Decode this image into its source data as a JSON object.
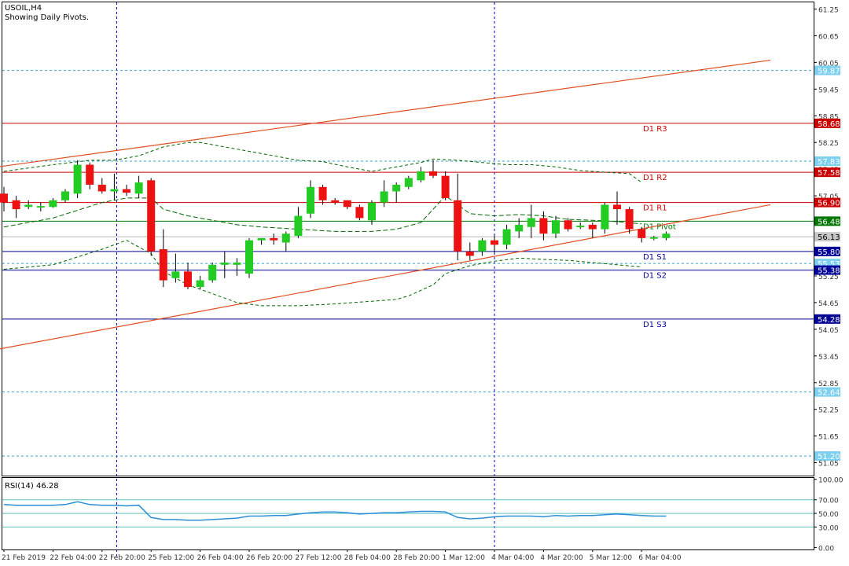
{
  "header": {
    "symbol": "USOIL,H4",
    "subtitle": "Showing Daily Pivots."
  },
  "rsi_label": "RSI(14) 46.28",
  "colors": {
    "up_candle": "#22cc22",
    "down_candle": "#ee1111",
    "pivot": "#007700",
    "resistance": "#cc0000",
    "support": "#000099",
    "trendline": "#e05020",
    "bands": "#006600",
    "dotted_levels": "#3aa0c8",
    "rsi_line": "#2a8fd8",
    "rsi_levels": "#5fc0c0",
    "period_separator": "#0000cc"
  },
  "chart_data": [
    {
      "type": "candlestick",
      "title": "USOIL,H4",
      "y_ticks": [
        "61.25",
        "60.65",
        "60.05",
        "59.45",
        "58.85",
        "58.25",
        "57.65",
        "57.05",
        "56.45",
        "55.85",
        "55.25",
        "54.65",
        "54.05",
        "53.45",
        "52.85",
        "52.25",
        "51.65",
        "51.05"
      ],
      "ylim": [
        50.76,
        61.4
      ],
      "x_ticks": [
        {
          "index": 0,
          "label": "21 Feb 2019"
        },
        {
          "index": 4,
          "label": "22 Feb 04:00"
        },
        {
          "index": 8,
          "label": "22 Feb 20:00"
        },
        {
          "index": 12,
          "label": "25 Feb 12:00"
        },
        {
          "index": 16,
          "label": "26 Feb 04:00"
        },
        {
          "index": 20,
          "label": "26 Feb 20:00"
        },
        {
          "index": 24,
          "label": "27 Feb 12:00"
        },
        {
          "index": 28,
          "label": "28 Feb 04:00"
        },
        {
          "index": 32,
          "label": "28 Feb 20:00"
        },
        {
          "index": 36,
          "label": "1 Mar 12:00"
        },
        {
          "index": 40,
          "label": "4 Mar 04:00"
        },
        {
          "index": 44,
          "label": "4 Mar 20:00"
        },
        {
          "index": 48,
          "label": "5 Mar 12:00"
        },
        {
          "index": 52,
          "label": "6 Mar 04:00"
        }
      ],
      "candles": [
        {
          "o": 57.1,
          "h": 57.25,
          "c": 56.9,
          "l": 56.7
        },
        {
          "o": 56.95,
          "h": 57.05,
          "c": 56.75,
          "l": 56.55
        },
        {
          "o": 56.8,
          "h": 56.95,
          "c": 56.85,
          "l": 56.75
        },
        {
          "o": 56.8,
          "h": 56.9,
          "c": 56.82,
          "l": 56.7
        },
        {
          "o": 56.8,
          "h": 57.0,
          "c": 56.95,
          "l": 56.78
        },
        {
          "o": 56.95,
          "h": 57.2,
          "c": 57.15,
          "l": 56.9
        },
        {
          "o": 57.1,
          "h": 57.85,
          "c": 57.75,
          "l": 57.0
        },
        {
          "o": 57.75,
          "h": 57.8,
          "c": 57.3,
          "l": 57.2
        },
        {
          "o": 57.3,
          "h": 57.45,
          "c": 57.15,
          "l": 57.1
        },
        {
          "o": 57.15,
          "h": 57.55,
          "c": 57.2,
          "l": 56.95
        },
        {
          "o": 57.2,
          "h": 57.3,
          "c": 57.12,
          "l": 57.05
        },
        {
          "o": 57.1,
          "h": 57.5,
          "c": 57.35,
          "l": 57.0
        },
        {
          "o": 57.4,
          "h": 57.45,
          "c": 55.8,
          "l": 55.7
        },
        {
          "o": 55.85,
          "h": 56.3,
          "c": 55.15,
          "l": 55.0
        },
        {
          "o": 55.2,
          "h": 55.75,
          "c": 55.35,
          "l": 55.1
        },
        {
          "o": 55.35,
          "h": 55.55,
          "c": 55.0,
          "l": 54.95
        },
        {
          "o": 55.0,
          "h": 55.25,
          "c": 55.15,
          "l": 54.95
        },
        {
          "o": 55.15,
          "h": 55.55,
          "c": 55.5,
          "l": 55.1
        },
        {
          "o": 55.5,
          "h": 55.8,
          "c": 55.55,
          "l": 55.2
        },
        {
          "o": 55.5,
          "h": 55.65,
          "c": 55.55,
          "l": 55.25
        },
        {
          "o": 55.3,
          "h": 56.1,
          "c": 56.05,
          "l": 55.2
        },
        {
          "o": 56.05,
          "h": 56.1,
          "c": 56.1,
          "l": 55.95
        },
        {
          "o": 56.1,
          "h": 56.2,
          "c": 56.05,
          "l": 55.95
        },
        {
          "o": 56.0,
          "h": 56.25,
          "c": 56.2,
          "l": 55.8
        },
        {
          "o": 56.15,
          "h": 56.8,
          "c": 56.6,
          "l": 56.1
        },
        {
          "o": 56.65,
          "h": 57.4,
          "c": 57.25,
          "l": 56.55
        },
        {
          "o": 57.25,
          "h": 57.3,
          "c": 56.95,
          "l": 56.85
        },
        {
          "o": 56.95,
          "h": 57.0,
          "c": 56.9,
          "l": 56.85
        },
        {
          "o": 56.95,
          "h": 56.95,
          "c": 56.8,
          "l": 56.75
        },
        {
          "o": 56.8,
          "h": 56.85,
          "c": 56.55,
          "l": 56.5
        },
        {
          "o": 56.5,
          "h": 56.95,
          "c": 56.9,
          "l": 56.4
        },
        {
          "o": 56.9,
          "h": 57.4,
          "c": 57.15,
          "l": 56.8
        },
        {
          "o": 57.15,
          "h": 57.35,
          "c": 57.3,
          "l": 56.9
        },
        {
          "o": 57.25,
          "h": 57.5,
          "c": 57.45,
          "l": 57.2
        },
        {
          "o": 57.4,
          "h": 57.7,
          "c": 57.6,
          "l": 57.35
        },
        {
          "o": 57.6,
          "h": 57.85,
          "c": 57.5,
          "l": 57.45
        },
        {
          "o": 57.5,
          "h": 57.6,
          "c": 57.0,
          "l": 56.95
        },
        {
          "o": 56.95,
          "h": 57.55,
          "c": 55.8,
          "l": 55.6
        },
        {
          "o": 55.8,
          "h": 56.0,
          "c": 55.7,
          "l": 55.6
        },
        {
          "o": 55.8,
          "h": 56.1,
          "c": 56.05,
          "l": 55.7
        },
        {
          "o": 56.05,
          "h": 56.15,
          "c": 55.95,
          "l": 55.75
        },
        {
          "o": 55.95,
          "h": 56.4,
          "c": 56.3,
          "l": 55.85
        },
        {
          "o": 56.25,
          "h": 56.55,
          "c": 56.4,
          "l": 56.1
        },
        {
          "o": 56.35,
          "h": 56.85,
          "c": 56.55,
          "l": 56.1
        },
        {
          "o": 56.55,
          "h": 56.7,
          "c": 56.2,
          "l": 56.05
        },
        {
          "o": 56.2,
          "h": 56.6,
          "c": 56.5,
          "l": 56.1
        },
        {
          "o": 56.5,
          "h": 56.55,
          "c": 56.3,
          "l": 56.25
        },
        {
          "o": 56.35,
          "h": 56.45,
          "c": 56.38,
          "l": 56.3
        },
        {
          "o": 56.4,
          "h": 56.45,
          "c": 56.3,
          "l": 56.1
        },
        {
          "o": 56.3,
          "h": 56.9,
          "c": 56.85,
          "l": 56.2
        },
        {
          "o": 56.85,
          "h": 57.15,
          "c": 56.75,
          "l": 56.4
        },
        {
          "o": 56.75,
          "h": 56.8,
          "c": 56.3,
          "l": 56.2
        },
        {
          "o": 56.3,
          "h": 56.35,
          "c": 56.1,
          "l": 56.0
        },
        {
          "o": 56.1,
          "h": 56.15,
          "c": 56.12,
          "l": 56.05
        },
        {
          "o": 56.1,
          "h": 56.25,
          "c": 56.2,
          "l": 56.05
        }
      ],
      "pivot_levels": [
        {
          "name": "D1 R3",
          "value": 58.68,
          "price": "58.68",
          "kind": "resistance"
        },
        {
          "name": "D1 R2",
          "value": 57.58,
          "price": "57.58",
          "kind": "resistance"
        },
        {
          "name": "D1 R1",
          "value": 56.9,
          "price": "56.90",
          "kind": "resistance"
        },
        {
          "name": "D1 Pivot",
          "value": 56.48,
          "price": "56.48",
          "kind": "pivot"
        },
        {
          "name": "D1 S1",
          "value": 55.8,
          "price": "55.80",
          "kind": "support"
        },
        {
          "name": "D1 S2",
          "value": 55.38,
          "price": "55.38",
          "kind": "support"
        },
        {
          "name": "D1 S3",
          "value": 54.28,
          "price": "54.28",
          "kind": "support"
        }
      ],
      "dotted_levels": [
        {
          "value": 59.87,
          "price": "59.87"
        },
        {
          "value": 57.83,
          "price": "57.83"
        },
        {
          "value": 55.53,
          "price": "55.53"
        },
        {
          "value": 52.64,
          "price": "52.64"
        },
        {
          "value": 51.2,
          "price": "51.20"
        }
      ],
      "current_price": {
        "value": 56.13,
        "price": "56.13"
      },
      "trendlines": [
        {
          "x1": -0.5,
          "y1": 57.7,
          "x2": 62.5,
          "y2": 60.1
        },
        {
          "x1": -0.5,
          "y1": 53.6,
          "x2": 62.5,
          "y2": 56.85
        }
      ],
      "band_upper": [
        [
          0,
          57.6
        ],
        [
          4,
          57.75
        ],
        [
          7,
          57.85
        ],
        [
          9,
          57.85
        ],
        [
          11,
          57.95
        ],
        [
          13,
          58.15
        ],
        [
          15,
          58.25
        ],
        [
          16,
          58.25
        ],
        [
          18,
          58.15
        ],
        [
          20,
          58.05
        ],
        [
          22,
          57.95
        ],
        [
          24,
          57.85
        ],
        [
          26,
          57.82
        ],
        [
          28,
          57.7
        ],
        [
          30,
          57.6
        ],
        [
          32,
          57.7
        ],
        [
          34,
          57.8
        ],
        [
          35,
          57.88
        ],
        [
          37,
          57.85
        ],
        [
          39,
          57.8
        ],
        [
          41,
          57.75
        ],
        [
          43,
          57.75
        ],
        [
          45,
          57.7
        ],
        [
          47,
          57.62
        ],
        [
          49,
          57.58
        ],
        [
          51,
          57.55
        ],
        [
          52,
          57.35
        ]
      ],
      "band_lower": [
        [
          0,
          55.4
        ],
        [
          4,
          55.5
        ],
        [
          8,
          55.85
        ],
        [
          10,
          56.05
        ],
        [
          12,
          55.75
        ],
        [
          13,
          55.35
        ],
        [
          15,
          55.05
        ],
        [
          17,
          54.85
        ],
        [
          19,
          54.65
        ],
        [
          21,
          54.58
        ],
        [
          24,
          54.58
        ],
        [
          27,
          54.62
        ],
        [
          30,
          54.68
        ],
        [
          32,
          54.72
        ],
        [
          33,
          54.8
        ],
        [
          35,
          55.05
        ],
        [
          36,
          55.3
        ],
        [
          38,
          55.48
        ],
        [
          40,
          55.58
        ],
        [
          42,
          55.65
        ],
        [
          44,
          55.62
        ],
        [
          46,
          55.6
        ],
        [
          48,
          55.55
        ],
        [
          50,
          55.5
        ],
        [
          52,
          55.45
        ]
      ],
      "band_mid": [
        [
          0,
          56.35
        ],
        [
          4,
          56.55
        ],
        [
          8,
          56.9
        ],
        [
          10,
          57.0
        ],
        [
          12,
          57.0
        ],
        [
          13,
          56.75
        ],
        [
          15,
          56.6
        ],
        [
          17,
          56.5
        ],
        [
          19,
          56.4
        ],
        [
          21,
          56.35
        ],
        [
          24,
          56.3
        ],
        [
          27,
          56.25
        ],
        [
          30,
          56.25
        ],
        [
          32,
          56.3
        ],
        [
          34,
          56.45
        ],
        [
          35,
          56.75
        ],
        [
          36,
          57.05
        ],
        [
          37,
          56.85
        ],
        [
          38,
          56.65
        ],
        [
          40,
          56.6
        ],
        [
          42,
          56.63
        ],
        [
          44,
          56.6
        ],
        [
          46,
          56.52
        ],
        [
          48,
          56.5
        ],
        [
          50,
          56.47
        ],
        [
          52,
          56.42
        ]
      ],
      "xlabel": "",
      "ylabel": "",
      "grid": false
    },
    {
      "type": "line",
      "title": "RSI(14) 46.28",
      "y_ticks": [
        "100.00",
        "70.00",
        "50.00",
        "30.00",
        "0.00"
      ],
      "levels": [
        70,
        50,
        30
      ],
      "ylim": [
        -3,
        102
      ],
      "series": [
        {
          "name": "RSI(14)",
          "values": [
            63,
            62,
            62,
            62,
            62,
            63,
            67,
            63,
            62,
            62,
            61,
            62,
            44,
            41,
            41,
            40,
            40,
            41,
            42,
            43,
            46,
            46,
            47,
            47,
            49,
            51,
            52,
            52,
            51,
            49,
            50,
            51,
            51,
            52,
            53,
            53,
            52,
            44,
            42,
            43,
            45,
            46,
            46,
            46,
            45,
            47,
            46,
            47,
            47,
            48,
            49,
            48,
            47,
            46,
            46
          ]
        }
      ],
      "xlabel": "",
      "ylabel": ""
    }
  ]
}
